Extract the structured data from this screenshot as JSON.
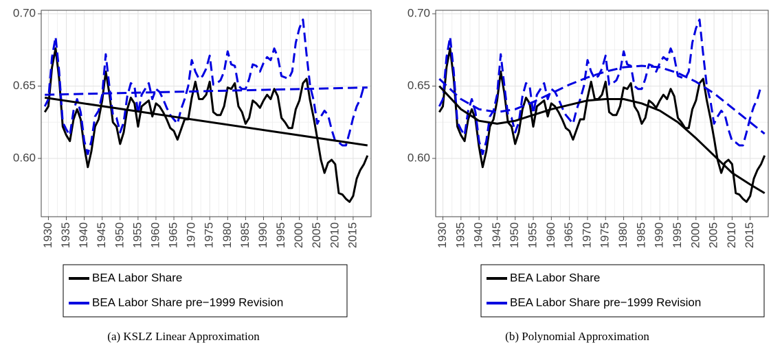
{
  "chart_data": [
    {
      "type": "line",
      "caption": "(a) KSLZ Linear Approximation",
      "x": [
        1929,
        1930,
        1931,
        1932,
        1933,
        1934,
        1935,
        1936,
        1937,
        1938,
        1939,
        1940,
        1941,
        1942,
        1943,
        1944,
        1945,
        1946,
        1947,
        1948,
        1949,
        1950,
        1951,
        1952,
        1953,
        1954,
        1955,
        1956,
        1957,
        1958,
        1959,
        1960,
        1961,
        1962,
        1963,
        1964,
        1965,
        1966,
        1967,
        1968,
        1969,
        1970,
        1971,
        1972,
        1973,
        1974,
        1975,
        1976,
        1977,
        1978,
        1979,
        1980,
        1981,
        1982,
        1983,
        1984,
        1985,
        1986,
        1987,
        1988,
        1989,
        1990,
        1991,
        1992,
        1993,
        1994,
        1995,
        1996,
        1997,
        1998,
        1999,
        2000,
        2001,
        2002,
        2003,
        2004,
        2005,
        2006,
        2007,
        2008,
        2009,
        2010,
        2011,
        2012,
        2013,
        2014,
        2015,
        2016,
        2017,
        2018,
        2019
      ],
      "series": [
        {
          "name": "BEA Labor Share",
          "color": "#000000",
          "dash": false,
          "values": [
            0.632,
            0.636,
            0.663,
            0.676,
            0.655,
            0.622,
            0.616,
            0.612,
            0.627,
            0.634,
            0.627,
            0.608,
            0.594,
            0.605,
            0.622,
            0.627,
            0.64,
            0.66,
            0.645,
            0.625,
            0.622,
            0.61,
            0.618,
            0.634,
            0.642,
            0.638,
            0.622,
            0.636,
            0.638,
            0.64,
            0.629,
            0.638,
            0.636,
            0.632,
            0.627,
            0.621,
            0.619,
            0.613,
            0.62,
            0.627,
            0.627,
            0.642,
            0.653,
            0.641,
            0.641,
            0.644,
            0.653,
            0.632,
            0.63,
            0.63,
            0.636,
            0.649,
            0.648,
            0.652,
            0.636,
            0.632,
            0.624,
            0.628,
            0.64,
            0.638,
            0.635,
            0.64,
            0.644,
            0.641,
            0.648,
            0.643,
            0.628,
            0.625,
            0.621,
            0.621,
            0.634,
            0.64,
            0.652,
            0.655,
            0.64,
            0.628,
            0.614,
            0.599,
            0.59,
            0.597,
            0.599,
            0.596,
            0.576,
            0.575,
            0.572,
            0.57,
            0.574,
            0.586,
            0.592,
            0.596,
            0.602
          ]
        },
        {
          "name": "BEA Labor Share pre−1999 Revision",
          "color": "#0000e0",
          "dash": true,
          "values": [
            0.636,
            0.641,
            0.67,
            0.684,
            0.66,
            0.625,
            0.62,
            0.616,
            0.633,
            0.641,
            0.632,
            0.612,
            0.603,
            0.612,
            0.629,
            0.633,
            0.644,
            0.672,
            0.65,
            0.63,
            0.628,
            0.618,
            0.625,
            0.643,
            0.652,
            0.65,
            0.631,
            0.644,
            0.648,
            0.652,
            0.641,
            0.648,
            0.646,
            0.641,
            0.635,
            0.63,
            0.627,
            0.624,
            0.634,
            0.641,
            0.65,
            0.668,
            0.66,
            0.655,
            0.657,
            0.662,
            0.671,
            0.651,
            0.652,
            0.654,
            0.66,
            0.674,
            0.665,
            0.664,
            0.65,
            0.648,
            0.648,
            0.655,
            0.665,
            0.664,
            0.66,
            0.666,
            0.67,
            0.668,
            0.676,
            0.67,
            0.657,
            0.656,
            0.655,
            0.66,
            0.68,
            0.69,
            0.696,
            0.672,
            0.65,
            0.64,
            0.624,
            0.629,
            0.633,
            0.63,
            0.62,
            0.612,
            0.611,
            0.609,
            0.609,
            0.618,
            0.628,
            0.636,
            0.641,
            0.65,
            null
          ]
        }
      ],
      "trend_lines": [
        {
          "color": "#000000",
          "dash": false,
          "x": [
            1929,
            2019
          ],
          "values": [
            0.642,
            0.609
          ]
        },
        {
          "color": "#0000e0",
          "dash": true,
          "x": [
            1929,
            2019
          ],
          "values": [
            0.644,
            0.649
          ]
        }
      ],
      "xlim": [
        1928,
        2020
      ],
      "ylim": [
        0.5597,
        0.7024
      ],
      "xticks": [
        1930,
        1935,
        1940,
        1945,
        1950,
        1955,
        1960,
        1965,
        1970,
        1975,
        1980,
        1985,
        1990,
        1995,
        2000,
        2005,
        2010,
        2015
      ],
      "yticks": [
        {
          "value": 0.6,
          "label": "0.60"
        },
        {
          "value": 0.65,
          "label": "0.65"
        },
        {
          "value": 0.7,
          "label": "0.70"
        }
      ],
      "grid": true
    },
    {
      "type": "line",
      "caption": "(b) Polynomial Approximation",
      "x": [
        1929,
        1930,
        1931,
        1932,
        1933,
        1934,
        1935,
        1936,
        1937,
        1938,
        1939,
        1940,
        1941,
        1942,
        1943,
        1944,
        1945,
        1946,
        1947,
        1948,
        1949,
        1950,
        1951,
        1952,
        1953,
        1954,
        1955,
        1956,
        1957,
        1958,
        1959,
        1960,
        1961,
        1962,
        1963,
        1964,
        1965,
        1966,
        1967,
        1968,
        1969,
        1970,
        1971,
        1972,
        1973,
        1974,
        1975,
        1976,
        1977,
        1978,
        1979,
        1980,
        1981,
        1982,
        1983,
        1984,
        1985,
        1986,
        1987,
        1988,
        1989,
        1990,
        1991,
        1992,
        1993,
        1994,
        1995,
        1996,
        1997,
        1998,
        1999,
        2000,
        2001,
        2002,
        2003,
        2004,
        2005,
        2006,
        2007,
        2008,
        2009,
        2010,
        2011,
        2012,
        2013,
        2014,
        2015,
        2016,
        2017,
        2018,
        2019
      ],
      "series": [
        {
          "name": "BEA Labor Share",
          "color": "#000000",
          "dash": false,
          "values": [
            0.632,
            0.636,
            0.663,
            0.676,
            0.655,
            0.622,
            0.616,
            0.612,
            0.627,
            0.634,
            0.627,
            0.608,
            0.594,
            0.605,
            0.622,
            0.627,
            0.64,
            0.66,
            0.645,
            0.625,
            0.622,
            0.61,
            0.618,
            0.634,
            0.642,
            0.638,
            0.622,
            0.636,
            0.638,
            0.64,
            0.629,
            0.638,
            0.636,
            0.632,
            0.627,
            0.621,
            0.619,
            0.613,
            0.62,
            0.627,
            0.627,
            0.642,
            0.653,
            0.641,
            0.641,
            0.644,
            0.653,
            0.632,
            0.63,
            0.63,
            0.636,
            0.649,
            0.648,
            0.652,
            0.636,
            0.632,
            0.624,
            0.628,
            0.64,
            0.638,
            0.635,
            0.64,
            0.644,
            0.641,
            0.648,
            0.643,
            0.628,
            0.625,
            0.621,
            0.621,
            0.634,
            0.64,
            0.652,
            0.655,
            0.64,
            0.628,
            0.614,
            0.599,
            0.59,
            0.597,
            0.599,
            0.596,
            0.576,
            0.575,
            0.572,
            0.57,
            0.574,
            0.586,
            0.592,
            0.596,
            0.602
          ]
        },
        {
          "name": "BEA Labor Share pre−1999 Revision",
          "color": "#0000e0",
          "dash": true,
          "values": [
            0.636,
            0.641,
            0.67,
            0.684,
            0.66,
            0.625,
            0.62,
            0.616,
            0.633,
            0.641,
            0.632,
            0.612,
            0.603,
            0.612,
            0.629,
            0.633,
            0.644,
            0.672,
            0.65,
            0.63,
            0.628,
            0.618,
            0.625,
            0.643,
            0.652,
            0.65,
            0.631,
            0.644,
            0.648,
            0.652,
            0.641,
            0.648,
            0.646,
            0.641,
            0.635,
            0.63,
            0.627,
            0.624,
            0.634,
            0.641,
            0.65,
            0.668,
            0.66,
            0.655,
            0.657,
            0.662,
            0.671,
            0.651,
            0.652,
            0.654,
            0.66,
            0.674,
            0.665,
            0.664,
            0.65,
            0.648,
            0.648,
            0.655,
            0.665,
            0.664,
            0.66,
            0.666,
            0.67,
            0.668,
            0.676,
            0.67,
            0.657,
            0.656,
            0.655,
            0.66,
            0.68,
            0.69,
            0.696,
            0.672,
            0.65,
            0.64,
            0.624,
            0.629,
            0.633,
            0.63,
            0.62,
            0.612,
            0.611,
            0.609,
            0.609,
            0.618,
            0.628,
            0.636,
            0.641,
            0.65,
            null
          ]
        }
      ],
      "trend_lines": [
        {
          "color": "#000000",
          "dash": false,
          "x": [
            1929,
            1935,
            1940,
            1945,
            1950,
            1955,
            1960,
            1965,
            1970,
            1975,
            1980,
            1985,
            1990,
            1995,
            2000,
            2005,
            2010,
            2015,
            2019
          ],
          "values": [
            0.65,
            0.634,
            0.626,
            0.624,
            0.626,
            0.63,
            0.634,
            0.637,
            0.64,
            0.641,
            0.641,
            0.638,
            0.633,
            0.625,
            0.614,
            0.602,
            0.59,
            0.582,
            0.576
          ]
        },
        {
          "color": "#0000e0",
          "dash": true,
          "x": [
            1929,
            1935,
            1940,
            1945,
            1950,
            1955,
            1960,
            1965,
            1970,
            1975,
            1980,
            1985,
            1990,
            1995,
            2000,
            2005,
            2010,
            2015,
            2019
          ],
          "values": [
            0.655,
            0.641,
            0.634,
            0.632,
            0.634,
            0.639,
            0.645,
            0.651,
            0.656,
            0.66,
            0.663,
            0.664,
            0.663,
            0.659,
            0.653,
            0.645,
            0.635,
            0.625,
            0.617
          ]
        }
      ],
      "xlim": [
        1928,
        2020
      ],
      "ylim": [
        0.5597,
        0.7024
      ],
      "xticks": [
        1930,
        1935,
        1940,
        1945,
        1950,
        1955,
        1960,
        1965,
        1970,
        1975,
        1980,
        1985,
        1990,
        1995,
        2000,
        2005,
        2010,
        2015
      ],
      "yticks": [
        {
          "value": 0.6,
          "label": "0.60"
        },
        {
          "value": 0.65,
          "label": "0.65"
        },
        {
          "value": 0.7,
          "label": "0.70"
        }
      ],
      "grid": true
    }
  ]
}
